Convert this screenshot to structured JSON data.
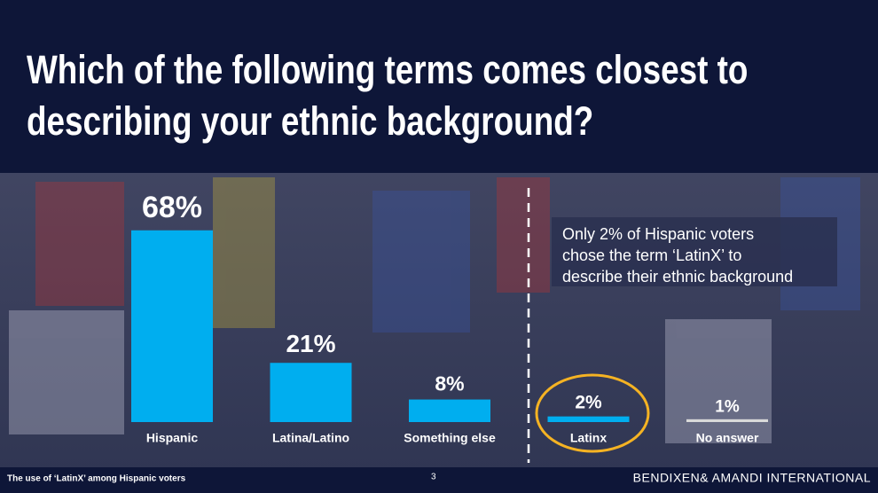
{
  "chart_data": {
    "type": "bar",
    "title": [
      "Which of the following terms comes closest to",
      "describing your ethnic background?"
    ],
    "categories": [
      "Hispanic",
      "Latina/Latino",
      "Something else",
      "Latinx",
      "No answer"
    ],
    "values": [
      68,
      21,
      8,
      2,
      1
    ],
    "value_labels": [
      "68%",
      "21%",
      "8%",
      "2%",
      "1%"
    ],
    "colors": [
      "#00aeef",
      "#00aeef",
      "#00aeef",
      "#00aeef",
      "#d9d9d9"
    ],
    "annotation": [
      "Only 2% of Hispanic voters",
      "chose the term ‘LatinX’ to",
      "describe their ethnic background"
    ]
  },
  "footer": {
    "caption": "The use of ‘LatinX’ among Hispanic voters",
    "page_number": 3,
    "brand": "BENDIXEN& AMANDI INTERNATIONAL"
  }
}
